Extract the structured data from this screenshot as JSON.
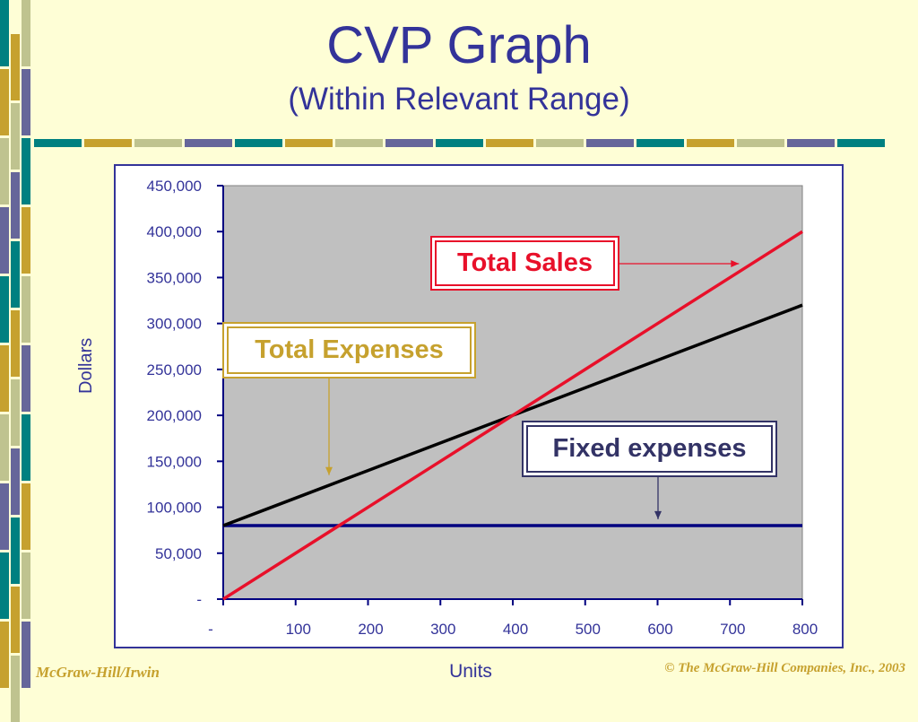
{
  "slide": {
    "title": "CVP Graph",
    "subtitle": "(Within Relevant Range)",
    "footer_left": "McGraw-Hill/Irwin",
    "footer_right": "© The McGraw-Hill Companies, Inc., 2003"
  },
  "colors": {
    "title": "#333399",
    "sales": "#E8102A",
    "expenses": "#000000",
    "fixed": "#000080",
    "plot_bg": "#C0C0C0",
    "accent_gold": "#C6A12E",
    "accent_teal": "#008080",
    "accent_sage": "#BFC38F",
    "accent_purple": "#66669A"
  },
  "chart_data": {
    "type": "line",
    "xlabel": "Units",
    "ylabel": "Dollars",
    "x": [
      0,
      100,
      200,
      300,
      400,
      500,
      600,
      700,
      800
    ],
    "x_tick_labels": [
      "-",
      "100",
      "200",
      "300",
      "400",
      "500",
      "600",
      "700",
      "800"
    ],
    "xlim": [
      0,
      800
    ],
    "y_ticks": [
      0,
      50000,
      100000,
      150000,
      200000,
      250000,
      300000,
      350000,
      400000,
      450000
    ],
    "y_tick_labels": [
      "-",
      "50,000",
      "100,000",
      "150,000",
      "200,000",
      "250,000",
      "300,000",
      "350,000",
      "400,000",
      "450,000"
    ],
    "ylim": [
      0,
      450000
    ],
    "grid": false,
    "series": [
      {
        "key": "sales",
        "values": [
          0,
          50000,
          100000,
          150000,
          200000,
          250000,
          300000,
          350000,
          400000
        ]
      },
      {
        "key": "expenses",
        "values": [
          80000,
          110000,
          140000,
          170000,
          200000,
          230000,
          260000,
          290000,
          320000
        ]
      },
      {
        "key": "fixed",
        "values": [
          80000,
          80000,
          80000,
          80000,
          80000,
          80000,
          80000,
          80000,
          80000
        ]
      }
    ],
    "annotations": [
      {
        "key": "sales",
        "text": "Total Sales",
        "points_to_x": 710,
        "points_to_y": 355000
      },
      {
        "key": "expenses",
        "text": "Total Expenses",
        "points_to_x": 150,
        "points_to_y": 135000
      },
      {
        "key": "fixed",
        "text": "Fixed expenses",
        "points_to_x": 600,
        "points_to_y": 85000
      }
    ]
  }
}
